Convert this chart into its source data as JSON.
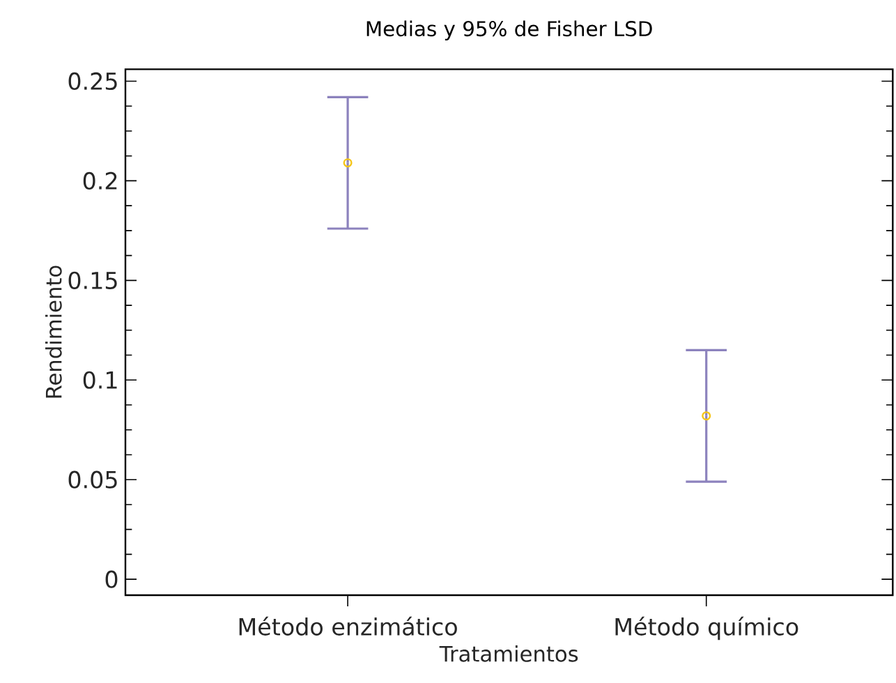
{
  "chart_data": {
    "type": "scatter",
    "title": "Medias y 95% de Fisher LSD",
    "xlabel": "Tratamientos",
    "ylabel": "Rendimiento",
    "categories": [
      "Método enzimático",
      "Método químico"
    ],
    "series": [
      {
        "color": "#f5c518",
        "values": [
          0.209,
          0.082
        ],
        "errors": [
          0.033,
          0.033
        ]
      }
    ],
    "ylim": [
      -0.008,
      0.256
    ],
    "yticks": [
      0,
      0.05,
      0.1,
      0.15,
      0.2,
      0.25
    ],
    "marker": "circle"
  }
}
